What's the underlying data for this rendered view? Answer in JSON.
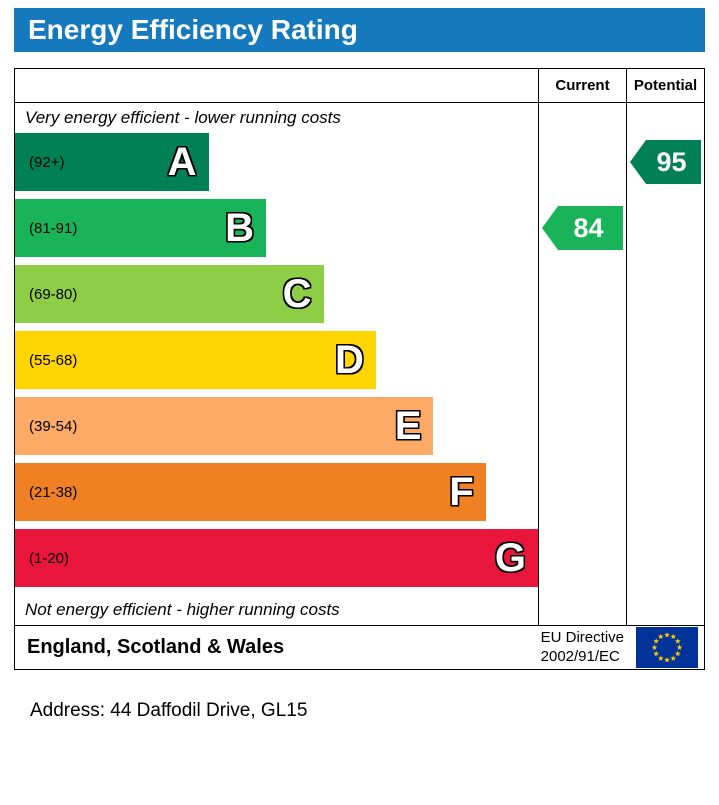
{
  "title": "Energy Efficiency Rating",
  "columns": {
    "current": "Current",
    "potential": "Potential"
  },
  "top_note": "Very energy efficient - lower running costs",
  "bottom_note": "Not energy efficient - higher running costs",
  "footer": {
    "region": "England, Scotland & Wales",
    "directive_line1": "EU Directive",
    "directive_line2": "2002/91/EC"
  },
  "address_line": "Address: 44 Daffodil Drive, GL15",
  "colors": {
    "title_bar": "#1479bd",
    "flag_blue": "#003399",
    "star_yellow": "#ffcc00"
  },
  "chart_data": {
    "type": "bar",
    "title": "Energy Efficiency Rating",
    "bands": [
      {
        "letter": "A",
        "range": "(92+)",
        "color": "#008054",
        "width_pct": 37
      },
      {
        "letter": "B",
        "range": "(81-91)",
        "color": "#19b459",
        "width_pct": 48
      },
      {
        "letter": "C",
        "range": "(69-80)",
        "color": "#8dce46",
        "width_pct": 59
      },
      {
        "letter": "D",
        "range": "(55-68)",
        "color": "#ffd500",
        "width_pct": 69
      },
      {
        "letter": "E",
        "range": "(39-54)",
        "color": "#fcaa65",
        "width_pct": 80
      },
      {
        "letter": "F",
        "range": "(21-38)",
        "color": "#ef8023",
        "width_pct": 90
      },
      {
        "letter": "G",
        "range": "(1-20)",
        "color": "#e9153b",
        "width_pct": 100
      }
    ],
    "current": {
      "value": 84,
      "band": "B",
      "color": "#19b459"
    },
    "potential": {
      "value": 95,
      "band": "A",
      "color": "#008054"
    }
  }
}
